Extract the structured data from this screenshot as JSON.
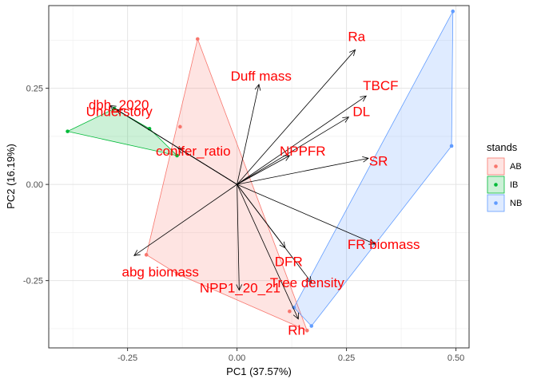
{
  "chart_data": {
    "type": "scatter",
    "title": "",
    "xlabel": "PC1 (37.57%)",
    "ylabel": "PC2 (16.19%)",
    "xlim": [
      -0.43,
      0.53
    ],
    "ylim": [
      -0.425,
      0.465
    ],
    "x_ticks": [
      -0.25,
      0.0,
      0.25,
      0.5
    ],
    "x_tick_labels": [
      "-0.25",
      "0.00",
      "0.25",
      "0.50"
    ],
    "y_ticks": [
      -0.25,
      0.0,
      0.25
    ],
    "y_tick_labels": [
      "-0.25",
      "0.00",
      "0.25"
    ],
    "grid": true,
    "legend": {
      "title": "stands",
      "position": "right",
      "entries": [
        {
          "name": "AB",
          "color": "#F8766D"
        },
        {
          "name": "IB",
          "color": "#00BA38"
        },
        {
          "name": "NB",
          "color": "#619CFF"
        }
      ]
    },
    "series": [
      {
        "name": "AB",
        "color": "#F8766D",
        "points": [
          {
            "x": -0.09,
            "y": 0.378
          },
          {
            "x": -0.207,
            "y": -0.183
          },
          {
            "x": -0.137,
            "y": -0.232
          },
          {
            "x": 0.12,
            "y": -0.33
          },
          {
            "x": 0.16,
            "y": -0.38
          },
          {
            "x": -0.13,
            "y": 0.15
          }
        ],
        "hull": [
          {
            "x": -0.09,
            "y": 0.378
          },
          {
            "x": 0.16,
            "y": -0.38
          },
          {
            "x": -0.137,
            "y": -0.232
          },
          {
            "x": -0.207,
            "y": -0.183
          }
        ]
      },
      {
        "name": "IB",
        "color": "#00BA38",
        "points": [
          {
            "x": -0.387,
            "y": 0.138
          },
          {
            "x": -0.28,
            "y": 0.197
          },
          {
            "x": -0.2,
            "y": 0.145
          },
          {
            "x": -0.137,
            "y": 0.075
          }
        ],
        "hull": [
          {
            "x": -0.387,
            "y": 0.138
          },
          {
            "x": -0.28,
            "y": 0.197
          },
          {
            "x": -0.2,
            "y": 0.145
          },
          {
            "x": -0.137,
            "y": 0.075
          }
        ]
      },
      {
        "name": "NB",
        "color": "#619CFF",
        "points": [
          {
            "x": 0.493,
            "y": 0.45
          },
          {
            "x": 0.49,
            "y": 0.1
          },
          {
            "x": 0.17,
            "y": -0.368
          },
          {
            "x": 0.13,
            "y": -0.32
          }
        ],
        "hull": [
          {
            "x": 0.493,
            "y": 0.45
          },
          {
            "x": 0.49,
            "y": 0.1
          },
          {
            "x": 0.17,
            "y": -0.368
          },
          {
            "x": 0.13,
            "y": -0.32
          }
        ]
      }
    ],
    "loadings": [
      {
        "label": "Ra",
        "x": 0.27,
        "y": 0.35
      },
      {
        "label": "TBCF",
        "x": 0.295,
        "y": 0.23
      },
      {
        "label": "DL",
        "x": 0.255,
        "y": 0.175
      },
      {
        "label": "SR",
        "x": 0.3,
        "y": 0.068
      },
      {
        "label": "NPPFR",
        "x": 0.12,
        "y": 0.075
      },
      {
        "label": "Duff mass",
        "x": 0.05,
        "y": 0.26
      },
      {
        "label": "dbh_2020",
        "x": -0.29,
        "y": 0.205
      },
      {
        "label": "Understory",
        "x": -0.275,
        "y": 0.195
      },
      {
        "label": "conifer_ratio",
        "x": -0.135,
        "y": 0.095
      },
      {
        "label": "abg biomass",
        "x": -0.235,
        "y": -0.185
      },
      {
        "label": "NPP1_20_21",
        "x": 0.005,
        "y": -0.275
      },
      {
        "label": "DFR",
        "x": 0.11,
        "y": -0.165
      },
      {
        "label": "FR biomass",
        "x": 0.315,
        "y": -0.155
      },
      {
        "label": "Tree density",
        "x": 0.17,
        "y": -0.255
      },
      {
        "label": "Rh",
        "x": 0.14,
        "y": -0.35
      }
    ],
    "loading_label_color": "#FF0000",
    "loading_label_offsets": {
      "Ra": [
        0.003,
        0.035
      ],
      "TBCF": [
        0.033,
        0.028
      ],
      "DL": [
        0.029,
        0.015
      ],
      "SR": [
        0.023,
        -0.007
      ],
      "NPPFR": [
        0.03,
        0.012
      ],
      "Duff mass": [
        0.005,
        0.022
      ],
      "dbh_2020": [
        0.02,
        0.003
      ],
      "Understory": [
        0.006,
        -0.005
      ],
      "conifer_ratio": [
        0.035,
        -0.008
      ],
      "abg biomass": [
        0.06,
        -0.042
      ],
      "NPP1_20_21": [
        0.002,
        0.007
      ],
      "DFR": [
        0.008,
        -0.035
      ],
      "FR biomass": [
        0.02,
        0.0
      ],
      "Tree density": [
        -0.01,
        0.0
      ],
      "Rh": [
        -0.004,
        -0.028
      ]
    }
  }
}
